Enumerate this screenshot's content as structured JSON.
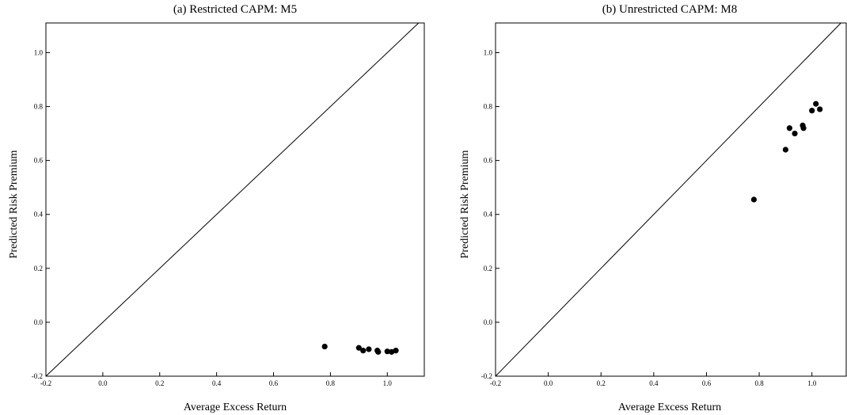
{
  "chart_data": [
    {
      "type": "scatter",
      "title": "(a) Restricted CAPM: M5",
      "xlabel": "Average Excess Return",
      "ylabel": "Predicted Risk Premium",
      "xlim": [
        -0.2,
        1.13
      ],
      "ylim": [
        -0.2,
        1.11
      ],
      "xticks": [
        -0.2,
        0.0,
        0.2,
        0.4,
        0.6,
        0.8,
        1.0
      ],
      "yticks": [
        -0.2,
        0.0,
        0.2,
        0.4,
        0.6,
        0.8,
        1.0
      ],
      "xtick_labels": [
        "-0.2",
        "0.0",
        "0.2",
        "0.4",
        "0.6",
        "0.8",
        "1.0"
      ],
      "ytick_labels": [
        "-0.2",
        "0.0",
        "0.2",
        "0.4",
        "0.6",
        "0.8",
        "1.0"
      ],
      "reference_line": "45-degree",
      "grid": false,
      "points": [
        {
          "x": 0.78,
          "y": -0.09
        },
        {
          "x": 0.9,
          "y": -0.095
        },
        {
          "x": 0.915,
          "y": -0.105
        },
        {
          "x": 0.935,
          "y": -0.1
        },
        {
          "x": 0.965,
          "y": -0.105
        },
        {
          "x": 0.968,
          "y": -0.11
        },
        {
          "x": 1.0,
          "y": -0.108
        },
        {
          "x": 1.015,
          "y": -0.11
        },
        {
          "x": 1.03,
          "y": -0.105
        }
      ],
      "point_color": "#000000"
    },
    {
      "type": "scatter",
      "title": "(b) Unrestricted CAPM: M8",
      "xlabel": "Average Excess Return",
      "ylabel": "Predicted Risk Premium",
      "xlim": [
        -0.2,
        1.13
      ],
      "ylim": [
        -0.2,
        1.11
      ],
      "xticks": [
        -0.2,
        0.0,
        0.2,
        0.4,
        0.6,
        0.8,
        1.0
      ],
      "yticks": [
        -0.2,
        0.0,
        0.2,
        0.4,
        0.6,
        0.8,
        1.0
      ],
      "xtick_labels": [
        "-0.2",
        "0.0",
        "0.2",
        "0.4",
        "0.6",
        "0.8",
        "1.0"
      ],
      "ytick_labels": [
        "-0.2",
        "0.0",
        "0.2",
        "0.4",
        "0.6",
        "0.8",
        "1.0"
      ],
      "reference_line": "45-degree",
      "grid": false,
      "points": [
        {
          "x": 0.78,
          "y": 0.455
        },
        {
          "x": 0.9,
          "y": 0.64
        },
        {
          "x": 0.915,
          "y": 0.72
        },
        {
          "x": 0.935,
          "y": 0.7
        },
        {
          "x": 0.965,
          "y": 0.73
        },
        {
          "x": 0.968,
          "y": 0.72
        },
        {
          "x": 1.0,
          "y": 0.785
        },
        {
          "x": 1.015,
          "y": 0.81
        },
        {
          "x": 1.03,
          "y": 0.79
        }
      ],
      "point_color": "#000000"
    }
  ]
}
